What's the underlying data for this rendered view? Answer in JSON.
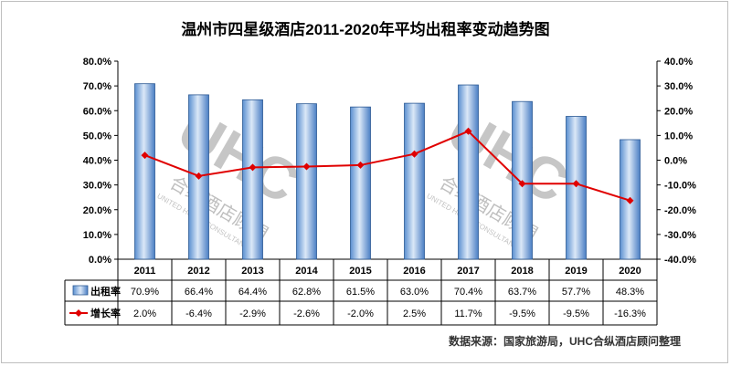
{
  "chart_data": {
    "type": "bar",
    "title": "温州市四星级酒店2011-2020年平均出租率变动趋势图",
    "categories": [
      "2011",
      "2012",
      "2013",
      "2014",
      "2015",
      "2016",
      "2017",
      "2018",
      "2019",
      "2020"
    ],
    "series": [
      {
        "name": "出租率",
        "type": "bar",
        "axis": "left",
        "values": [
          70.9,
          66.4,
          64.4,
          62.8,
          61.5,
          63.0,
          70.4,
          63.7,
          57.7,
          48.3
        ],
        "labels": [
          "70.9%",
          "66.4%",
          "64.4%",
          "62.8%",
          "61.5%",
          "63.0%",
          "70.4%",
          "63.7%",
          "57.7%",
          "48.3%"
        ],
        "color": "#7fa9d8"
      },
      {
        "name": "增长率",
        "type": "line",
        "axis": "right",
        "values": [
          2.0,
          -6.4,
          -2.9,
          -2.6,
          -2.0,
          2.5,
          11.7,
          -9.5,
          -9.5,
          -16.3
        ],
        "labels": [
          "2.0%",
          "-6.4%",
          "-2.9%",
          "-2.6%",
          "-2.0%",
          "2.5%",
          "11.7%",
          "-9.5%",
          "-9.5%",
          "-16.3%"
        ],
        "color": "#e00000"
      }
    ],
    "y_left": {
      "range": [
        0,
        80
      ],
      "ticks": [
        "0.0%",
        "10.0%",
        "20.0%",
        "30.0%",
        "40.0%",
        "50.0%",
        "60.0%",
        "70.0%",
        "80.0%"
      ]
    },
    "y_right": {
      "range": [
        -40,
        40
      ],
      "ticks": [
        "-40.0%",
        "-30.0%",
        "-20.0%",
        "-10.0%",
        "0.0%",
        "10.0%",
        "20.0%",
        "30.0%",
        "40.0%"
      ]
    },
    "grid": false,
    "legend": "data-table",
    "watermark": {
      "logo": "UHC",
      "chinese": "合纵酒店顾問",
      "english": "UNITED HOTEL CONSULTANCY"
    }
  },
  "source_note": "数据来源：国家旅游局，UHC合纵酒店顾问整理"
}
